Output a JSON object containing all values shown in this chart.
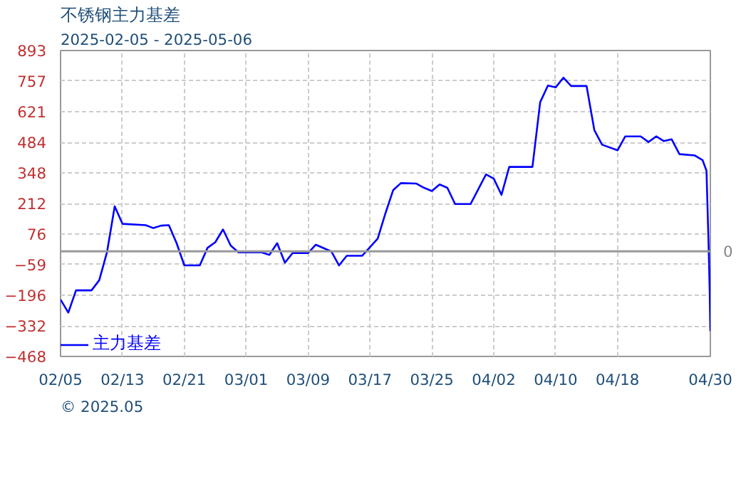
{
  "chart_data": {
    "type": "line",
    "title": "不锈钢主力基差",
    "subtitle": "2025-02-05 - 2025-05-06",
    "x": [
      "2025-02-05",
      "2025-02-06",
      "2025-02-07",
      "2025-02-09",
      "2025-02-10",
      "2025-02-11",
      "2025-02-12",
      "2025-02-13",
      "2025-02-16",
      "2025-02-17",
      "2025-02-18",
      "2025-02-19",
      "2025-02-20",
      "2025-02-21",
      "2025-02-23",
      "2025-02-24",
      "2025-02-25",
      "2025-02-26",
      "2025-02-27",
      "2025-02-28",
      "2025-03-03",
      "2025-03-04",
      "2025-03-05",
      "2025-03-06",
      "2025-03-07",
      "2025-03-09",
      "2025-03-10",
      "2025-03-12",
      "2025-03-13",
      "2025-03-14",
      "2025-03-16",
      "2025-03-18",
      "2025-03-19",
      "2025-03-20",
      "2025-03-21",
      "2025-03-23",
      "2025-03-24",
      "2025-03-25",
      "2025-03-26",
      "2025-03-27",
      "2025-03-28",
      "2025-03-30",
      "2025-04-01",
      "2025-04-02",
      "2025-04-03",
      "2025-04-04",
      "2025-04-07",
      "2025-04-08",
      "2025-04-09",
      "2025-04-10",
      "2025-04-11",
      "2025-04-12",
      "2025-04-14",
      "2025-04-15",
      "2025-04-16",
      "2025-04-18",
      "2025-04-19",
      "2025-04-21",
      "2025-04-22",
      "2025-04-23",
      "2025-04-24",
      "2025-04-25",
      "2025-04-26",
      "2025-04-28",
      "2025-04-29",
      "2025-04-29T12:00",
      "2025-04-29T18:00",
      "2025-04-29T20:00",
      "2025-04-29T22:00",
      "2025-04-30"
    ],
    "series": [
      {
        "name": "主力基差",
        "color": "#0000ff",
        "values": [
          -215,
          -273,
          -174,
          -174,
          -129,
          -5,
          200,
          122,
          116,
          103,
          114,
          116,
          36,
          -63,
          -63,
          15,
          40,
          97,
          25,
          -5,
          -5,
          -16,
          36,
          -51,
          -8,
          -8,
          29,
          -1,
          -63,
          -20,
          -20,
          56,
          169,
          272,
          303,
          301,
          282,
          268,
          297,
          282,
          210,
          210,
          342,
          323,
          251,
          375,
          375,
          663,
          737,
          729,
          772,
          735,
          735,
          539,
          474,
          449,
          511,
          511,
          486,
          511,
          490,
          498,
          432,
          426,
          405,
          358,
          55,
          -58,
          -181,
          -355
        ]
      }
    ],
    "xlim": [
      "2025-02-05",
      "2025-04-30"
    ],
    "xticks": [
      {
        "value": "2025-02-05",
        "label": "02/05"
      },
      {
        "value": "2025-02-13",
        "label": "02/13"
      },
      {
        "value": "2025-02-21",
        "label": "02/21"
      },
      {
        "value": "2025-03-01",
        "label": "03/01"
      },
      {
        "value": "2025-03-09",
        "label": "03/09"
      },
      {
        "value": "2025-03-17",
        "label": "03/17"
      },
      {
        "value": "2025-03-25",
        "label": "03/25"
      },
      {
        "value": "2025-04-02",
        "label": "04/02"
      },
      {
        "value": "2025-04-10",
        "label": "04/10"
      },
      {
        "value": "2025-04-18",
        "label": "04/18"
      },
      {
        "value": "2025-04-30",
        "label": "04/30"
      }
    ],
    "ylim": [
      -468,
      893
    ],
    "yticks": [
      -468,
      -332,
      -196,
      -59,
      76,
      212,
      348,
      484,
      621,
      757,
      893
    ],
    "ref_lines": [
      {
        "axis": "y",
        "value": 0,
        "label": "0",
        "color": "#999999"
      }
    ],
    "grid": true,
    "legend": "bottom left",
    "marker": "none",
    "line_style": "solid",
    "annotations": [
      "© 2025.05"
    ]
  }
}
